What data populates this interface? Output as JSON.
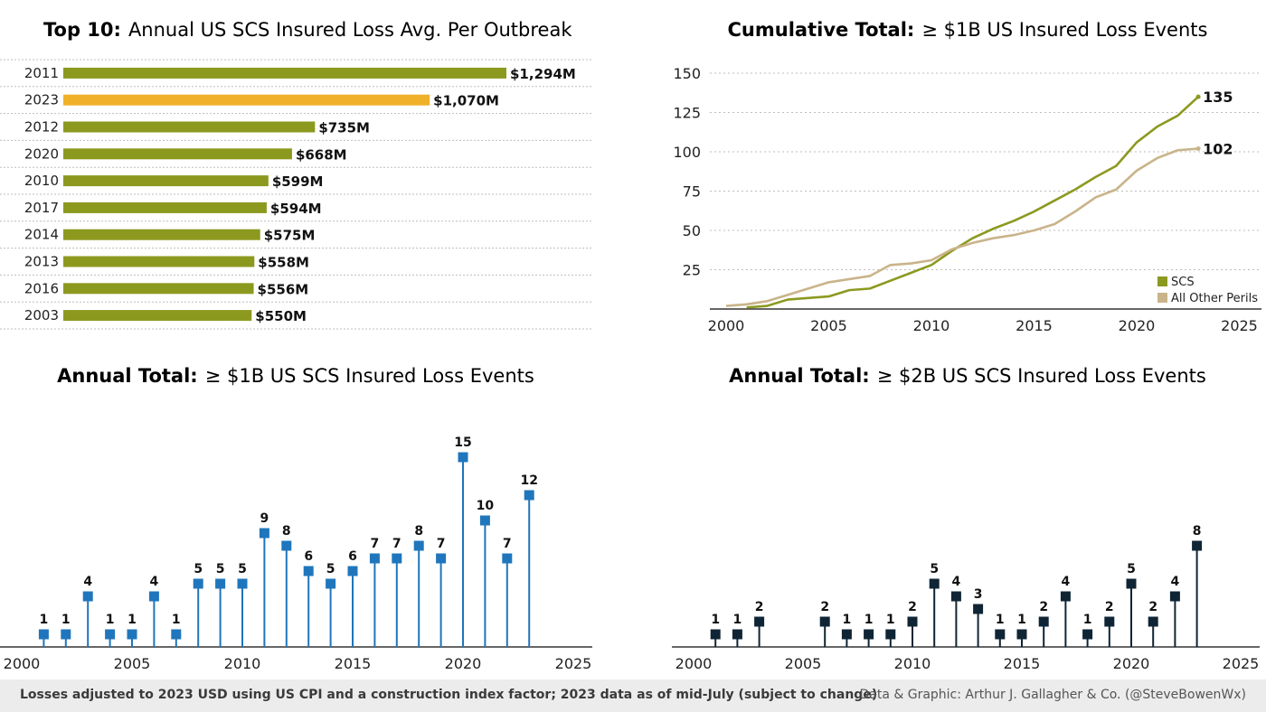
{
  "colors": {
    "olive": "#8c991f",
    "highlight": "#f0b02a",
    "tan": "#c9b48a",
    "blue": "#1f76bc",
    "navy": "#0f2535",
    "axis": "#333333",
    "grid": "#bdbdbd"
  },
  "footer": {
    "left": "Losses adjusted to 2023 USD using US CPI and a construction index factor; 2023 data as of mid-July (subject to change)",
    "right": "Data & Graphic: Arthur J. Gallagher & Co. (@SteveBowenWx)"
  },
  "chart_data": [
    {
      "type": "bar",
      "orientation": "horizontal",
      "title_bold": "Top 10:",
      "title": "Annual US SCS Insured Loss Avg. Per Outbreak",
      "categories": [
        "2011",
        "2023",
        "2012",
        "2020",
        "2010",
        "2017",
        "2014",
        "2013",
        "2016",
        "2003"
      ],
      "values": [
        1294,
        1070,
        735,
        668,
        599,
        594,
        575,
        558,
        556,
        550
      ],
      "value_labels": [
        "$1,294M",
        "$1,070M",
        "$735M",
        "$668M",
        "$599M",
        "$594M",
        "$575M",
        "$558M",
        "$556M",
        "$550M"
      ],
      "highlight": "2023",
      "unit": "USD millions",
      "grid": "dotted row separators"
    },
    {
      "type": "line",
      "title_bold": "Cumulative Total:",
      "title": "≥ $1B US Insured Loss Events",
      "xlim": [
        2000,
        2025
      ],
      "ylim": [
        0,
        150
      ],
      "xticks": [
        2000,
        2005,
        2010,
        2015,
        2020,
        2025
      ],
      "yticks": [
        25,
        50,
        75,
        100,
        125,
        150
      ],
      "legend_position": "bottom-right",
      "grid": "horizontal dotted",
      "series": [
        {
          "name": "SCS",
          "color": "olive",
          "x": [
            2001,
            2002,
            2003,
            2004,
            2005,
            2006,
            2007,
            2008,
            2009,
            2010,
            2011,
            2012,
            2013,
            2014,
            2015,
            2016,
            2017,
            2018,
            2019,
            2020,
            2021,
            2022,
            2023
          ],
          "y": [
            1,
            2,
            6,
            7,
            8,
            12,
            13,
            18,
            23,
            28,
            37,
            45,
            51,
            56,
            62,
            69,
            76,
            84,
            91,
            106,
            116,
            123,
            135
          ],
          "end_label": "135"
        },
        {
          "name": "All Other Perils",
          "color": "tan",
          "x": [
            2000,
            2001,
            2002,
            2003,
            2004,
            2005,
            2006,
            2007,
            2008,
            2009,
            2010,
            2011,
            2012,
            2013,
            2014,
            2015,
            2016,
            2017,
            2018,
            2019,
            2020,
            2021,
            2022,
            2023
          ],
          "y": [
            2,
            3,
            5,
            9,
            13,
            17,
            19,
            21,
            28,
            29,
            31,
            38,
            42,
            45,
            47,
            50,
            54,
            62,
            71,
            76,
            88,
            96,
            101,
            102
          ],
          "end_label": "102"
        }
      ]
    },
    {
      "type": "bar",
      "style": "lollipop",
      "title_bold": "Annual Total:",
      "title": "≥ $1B US SCS Insured Loss Events",
      "color": "blue",
      "xlim": [
        2000,
        2025
      ],
      "xticks": [
        2000,
        2005,
        2010,
        2015,
        2020,
        2025
      ],
      "ylim": [
        0,
        16
      ],
      "x": [
        2001,
        2002,
        2003,
        2004,
        2005,
        2006,
        2007,
        2008,
        2009,
        2010,
        2011,
        2012,
        2013,
        2014,
        2015,
        2016,
        2017,
        2018,
        2019,
        2020,
        2021,
        2022,
        2023
      ],
      "values": [
        1,
        1,
        4,
        1,
        1,
        4,
        1,
        5,
        5,
        5,
        9,
        8,
        6,
        5,
        6,
        7,
        7,
        8,
        7,
        15,
        10,
        7,
        12
      ]
    },
    {
      "type": "bar",
      "style": "lollipop",
      "title_bold": "Annual Total:",
      "title": "≥ $2B US SCS Insured Loss Events",
      "color": "navy",
      "xlim": [
        2000,
        2025
      ],
      "xticks": [
        2000,
        2005,
        2010,
        2015,
        2020,
        2025
      ],
      "ylim": [
        0,
        16
      ],
      "x": [
        2001,
        2002,
        2003,
        2006,
        2007,
        2008,
        2009,
        2010,
        2011,
        2012,
        2013,
        2014,
        2015,
        2016,
        2017,
        2018,
        2019,
        2020,
        2021,
        2022,
        2023
      ],
      "values": [
        1,
        1,
        2,
        2,
        1,
        1,
        1,
        2,
        5,
        4,
        3,
        1,
        1,
        2,
        4,
        1,
        2,
        5,
        2,
        4,
        8
      ]
    }
  ]
}
